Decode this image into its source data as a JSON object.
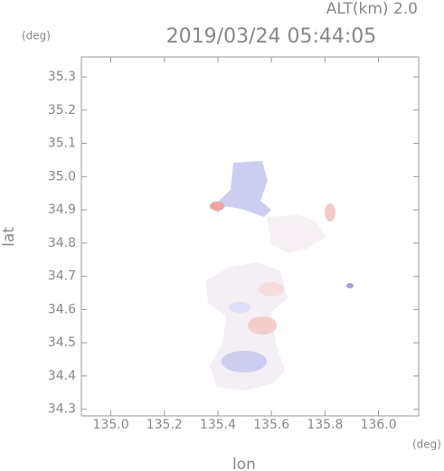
{
  "chart_data": {
    "type": "radar-map",
    "title": "2019/03/24 05:44:05",
    "altitude_label": "ALT(km) 2.0",
    "x_label": "lon",
    "y_label": "lat",
    "x_unit": "(deg)",
    "y_unit": "(deg)",
    "xlim": [
      134.89,
      136.15
    ],
    "ylim": [
      34.28,
      35.36
    ],
    "xticks": [
      {
        "value": 135,
        "label": "135.0"
      },
      135.2,
      135.4,
      135.6,
      135.8,
      {
        "value": 136,
        "label": "136.0"
      }
    ],
    "yticks": [
      34.3,
      34.4,
      34.5,
      34.6,
      34.7,
      34.8,
      34.9,
      {
        "value": 35,
        "label": "35.0"
      },
      35.1,
      35.2,
      35.3
    ]
  }
}
